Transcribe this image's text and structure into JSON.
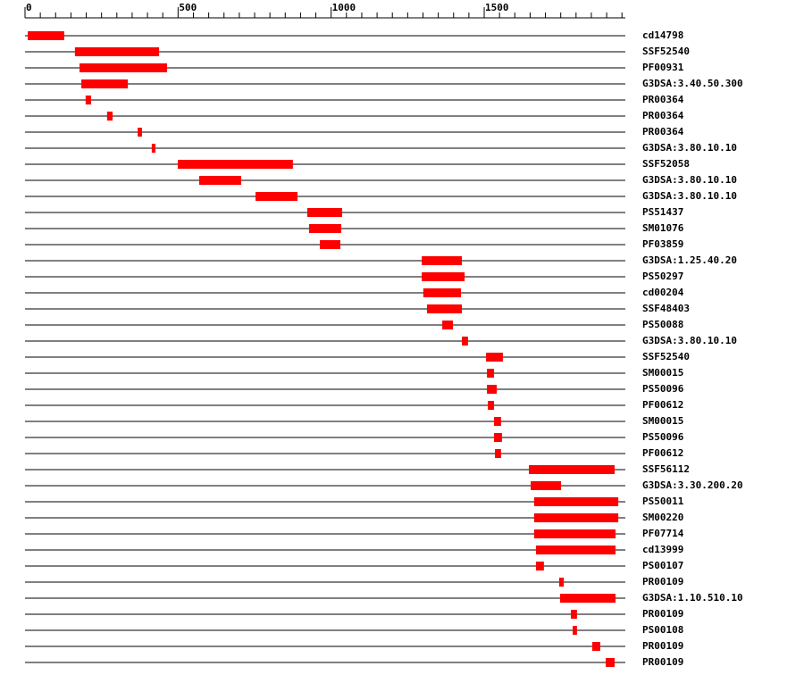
{
  "chart_data": {
    "type": "range",
    "categories": [
      "cd14798",
      "SSF52540",
      "PF00931",
      "G3DSA:3.40.50.300",
      "PR00364",
      "PR00364",
      "PR00364",
      "G3DSA:3.80.10.10",
      "SSF52058",
      "G3DSA:3.80.10.10",
      "G3DSA:3.80.10.10",
      "PS51437",
      "SM01076",
      "PF03859",
      "G3DSA:1.25.40.20",
      "PS50297",
      "cd00204",
      "SSF48403",
      "PS50088",
      "G3DSA:3.80.10.10",
      "SSF52540",
      "SM00015",
      "PS50096",
      "PF00612",
      "SM00015",
      "PS50096",
      "PF00612",
      "SSF56112",
      "G3DSA:3.30.200.20",
      "PS50011",
      "SM00220",
      "PF07714",
      "cd13999",
      "PS00107",
      "PR00109",
      "G3DSA:1.10.510.10",
      "PR00109",
      "PS00108",
      "PR00109",
      "PR00109"
    ],
    "starts": [
      9,
      163,
      178,
      184,
      198,
      268,
      368,
      414,
      499,
      569,
      753,
      922,
      928,
      963,
      1296,
      1296,
      1301,
      1313,
      1363,
      1427,
      1506,
      1509,
      1509,
      1512,
      1532,
      1532,
      1535,
      1646,
      1652,
      1663,
      1663,
      1663,
      1669,
      1669,
      1745,
      1748,
      1783,
      1789,
      1853,
      1897
    ],
    "ends": [
      128,
      438,
      464,
      336,
      216,
      286,
      382,
      426,
      875,
      706,
      890,
      1036,
      1033,
      1030,
      1427,
      1436,
      1424,
      1427,
      1398,
      1447,
      1561,
      1532,
      1541,
      1532,
      1555,
      1558,
      1555,
      1926,
      1751,
      1938,
      1938,
      1929,
      1929,
      1695,
      1760,
      1929,
      1803,
      1803,
      1879,
      1926
    ],
    "color": "#ff0000",
    "xlim": [
      0,
      1961
    ],
    "xticks": [
      0,
      500,
      1000,
      1500
    ],
    "xminorticks": [
      50,
      100,
      150,
      200,
      250,
      300,
      350,
      400,
      450,
      550,
      600,
      650,
      700,
      750,
      800,
      850,
      900,
      950,
      1050,
      1100,
      1150,
      1200,
      1250,
      1300,
      1350,
      1400,
      1450,
      1550,
      1600,
      1650,
      1700,
      1750,
      1800,
      1850,
      1900,
      1950
    ]
  }
}
